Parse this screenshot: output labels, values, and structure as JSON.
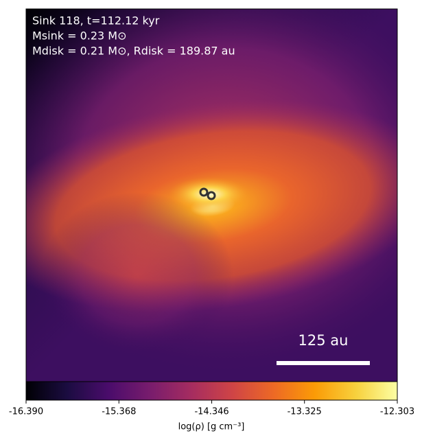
{
  "chart_data": {
    "type": "image",
    "annotations": [
      "Sink 118, t=112.12 kyr",
      "Msink = 0.23 M⊙",
      "Mdisk = 0.21 M⊙, Rdisk = 189.87 au"
    ],
    "scale_bar_label": "125 au",
    "colormap": "inferno",
    "colorbar": {
      "label": "log(ρ) [g cm⁻³]",
      "lim": [
        -16.39,
        -12.303
      ],
      "ticks": [
        {
          "value": -16.39,
          "label": "-16.390"
        },
        {
          "value": -15.368,
          "label": "-15.368"
        },
        {
          "value": -14.346,
          "label": "-14.346"
        },
        {
          "value": -13.325,
          "label": "-13.325"
        },
        {
          "value": -12.303,
          "label": "-12.303"
        }
      ]
    }
  }
}
